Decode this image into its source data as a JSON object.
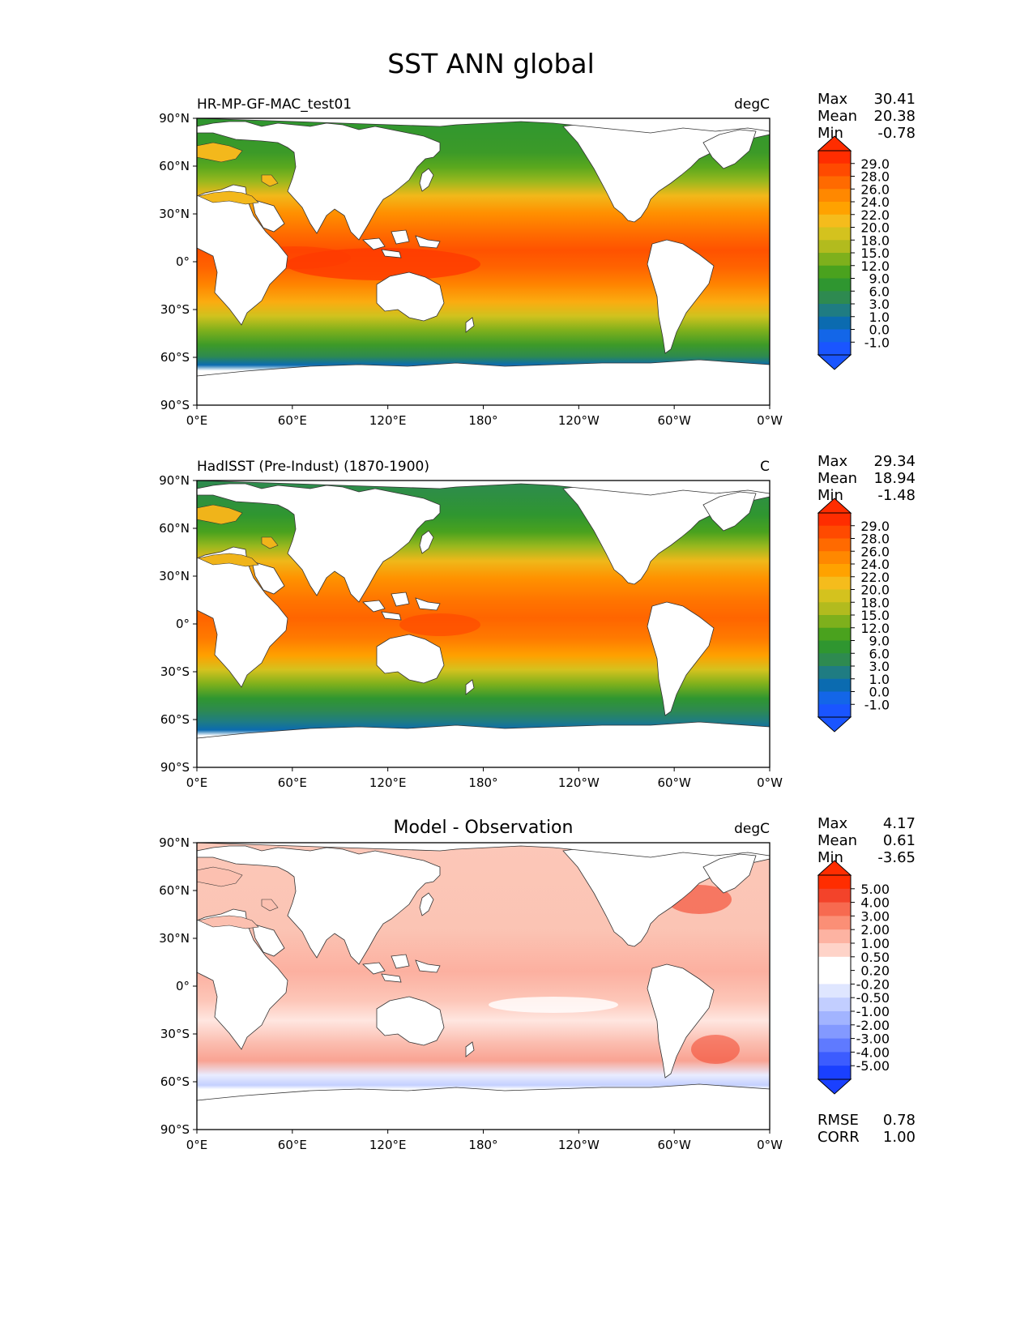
{
  "figure": {
    "title": "SST ANN global"
  },
  "chart_data": [
    {
      "type": "heatmap",
      "panel": "model",
      "title_left": "HR-MP-GF-MAC_test01",
      "title_center": "",
      "units": "degC",
      "xticks": [
        "0°E",
        "60°E",
        "120°E",
        "180°",
        "120°W",
        "60°W",
        "0°W"
      ],
      "yticks": [
        "90°N",
        "60°N",
        "30°N",
        "0°",
        "30°S",
        "60°S",
        "90°S"
      ],
      "xlim": [
        0,
        360
      ],
      "ylim": [
        -90,
        90
      ],
      "stats": [
        {
          "label": "Max",
          "value": "30.41"
        },
        {
          "label": "Mean",
          "value": "20.38"
        },
        {
          "label": "Min",
          "value": "-0.78"
        }
      ],
      "colorbar": {
        "labels": [
          "29.0",
          "28.0",
          "26.0",
          "24.0",
          "22.0",
          "20.0",
          "18.0",
          "15.0",
          "12.0",
          "9.0",
          "6.0",
          "3.0",
          "1.0",
          "0.0",
          "-1.0"
        ],
        "colors_top_to_bottom": [
          "#ff2d00",
          "#ff4a00",
          "#ff6a00",
          "#ff8800",
          "#ffa200",
          "#f5bc1c",
          "#d4c21e",
          "#b2bb1e",
          "#7eb01c",
          "#4aa21e",
          "#2f9630",
          "#2e8a50",
          "#1f7c82",
          "#0b6bb0",
          "#1366e8",
          "#1a55ff"
        ],
        "extend_top": "#ff2d00",
        "extend_bottom": "#1a55ff"
      },
      "extra_stats": []
    },
    {
      "type": "heatmap",
      "panel": "observation",
      "title_left": "HadISST (Pre-Indust) (1870-1900)",
      "title_center": "",
      "units": "C",
      "xticks": [
        "0°E",
        "60°E",
        "120°E",
        "180°",
        "120°W",
        "60°W",
        "0°W"
      ],
      "yticks": [
        "90°N",
        "60°N",
        "30°N",
        "0°",
        "30°S",
        "60°S",
        "90°S"
      ],
      "xlim": [
        0,
        360
      ],
      "ylim": [
        -90,
        90
      ],
      "stats": [
        {
          "label": "Max",
          "value": "29.34"
        },
        {
          "label": "Mean",
          "value": "18.94"
        },
        {
          "label": "Min",
          "value": "-1.48"
        }
      ],
      "colorbar": {
        "labels": [
          "29.0",
          "28.0",
          "26.0",
          "24.0",
          "22.0",
          "20.0",
          "18.0",
          "15.0",
          "12.0",
          "9.0",
          "6.0",
          "3.0",
          "1.0",
          "0.0",
          "-1.0"
        ],
        "colors_top_to_bottom": [
          "#ff2d00",
          "#ff4a00",
          "#ff6a00",
          "#ff8800",
          "#ffa200",
          "#f5bc1c",
          "#d4c21e",
          "#b2bb1e",
          "#7eb01c",
          "#4aa21e",
          "#2f9630",
          "#2e8a50",
          "#1f7c82",
          "#0b6bb0",
          "#1366e8",
          "#1a55ff"
        ],
        "extend_top": "#ff2d00",
        "extend_bottom": "#1a55ff"
      },
      "extra_stats": []
    },
    {
      "type": "heatmap",
      "panel": "difference",
      "title_left": "",
      "title_center": "Model - Observation",
      "units": "degC",
      "xticks": [
        "0°E",
        "60°E",
        "120°E",
        "180°",
        "120°W",
        "60°W",
        "0°W"
      ],
      "yticks": [
        "90°N",
        "60°N",
        "30°N",
        "0°",
        "30°S",
        "60°S",
        "90°S"
      ],
      "xlim": [
        0,
        360
      ],
      "ylim": [
        -90,
        90
      ],
      "stats": [
        {
          "label": "Max",
          "value": "4.17"
        },
        {
          "label": "Mean",
          "value": "0.61"
        },
        {
          "label": "Min",
          "value": "-3.65"
        }
      ],
      "colorbar": {
        "labels": [
          "5.00",
          "4.00",
          "3.00",
          "2.00",
          "1.00",
          "0.50",
          "0.20",
          "-0.20",
          "-0.50",
          "-1.00",
          "-2.00",
          "-3.00",
          "-4.00",
          "-5.00"
        ],
        "colors_top_to_bottom": [
          "#ff2d00",
          "#f3432a",
          "#f76a50",
          "#fb8f76",
          "#fdb3a2",
          "#fed3c8",
          "#ffffff",
          "#ffffff",
          "#dfe6ff",
          "#c2ceff",
          "#a2b4ff",
          "#8399ff",
          "#5f7aff",
          "#3c5cff",
          "#1a40ff"
        ],
        "extend_top": "#ff2d00",
        "extend_bottom": "#1a40ff"
      },
      "extra_stats": [
        {
          "label": "RMSE",
          "value": "0.78"
        },
        {
          "label": "CORR",
          "value": "1.00"
        }
      ]
    }
  ],
  "colors": {
    "land": "#ffffff",
    "coast": "#333333"
  }
}
